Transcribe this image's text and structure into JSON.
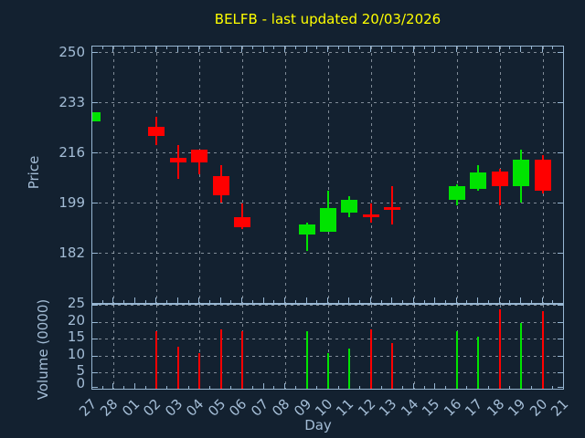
{
  "colors": {
    "background": "#132130",
    "axis": "#97b6d2",
    "text": "#a4bdd6",
    "title": "#ffff00",
    "up": "#00e400",
    "down": "#ff0000",
    "grid": "rgba(200,210,220,0.6)"
  },
  "chart_data": {
    "type": "candlestick",
    "title": "BELFB - last updated 20/03/2026",
    "xlabel": "Day",
    "x_labels": [
      "27",
      "28",
      "01",
      "02",
      "03",
      "04",
      "05",
      "06",
      "07",
      "08",
      "09",
      "10",
      "11",
      "12",
      "13",
      "16",
      "17",
      "18",
      "19",
      "20",
      "21"
    ],
    "x_labels_full": [
      "27",
      "28",
      "01",
      "02",
      "03",
      "04",
      "05",
      "06",
      "07",
      "08",
      "09",
      "10",
      "11",
      "12",
      "13",
      "14",
      "15",
      "16",
      "17",
      "18",
      "19",
      "20",
      "21"
    ],
    "grid_x_days": [
      "28",
      "02",
      "04",
      "06",
      "08",
      "10",
      "12",
      "14",
      "16",
      "18",
      "20"
    ],
    "legend": "none",
    "price_panel": {
      "ylabel": "Price",
      "yticks": [
        250,
        233,
        216,
        199,
        182
      ],
      "ylim": [
        164.8,
        252.3
      ],
      "candles": [
        {
          "day": "27",
          "open": 227,
          "high": 230,
          "low": 227,
          "close": 230
        },
        {
          "day": "02",
          "open": 225,
          "high": 228.5,
          "low": 219,
          "close": 222
        },
        {
          "day": "03",
          "open": 214.5,
          "high": 219,
          "low": 207.5,
          "close": 213
        },
        {
          "day": "04",
          "open": 217.5,
          "high": 217.5,
          "low": 209,
          "close": 213
        },
        {
          "day": "05",
          "open": 208.5,
          "high": 212,
          "low": 199.5,
          "close": 202
        },
        {
          "day": "06",
          "open": 194.5,
          "high": 199,
          "low": 190.5,
          "close": 191
        },
        {
          "day": "09",
          "open": 188.5,
          "high": 192.5,
          "low": 183,
          "close": 192
        },
        {
          "day": "10",
          "open": 189.5,
          "high": 203.5,
          "low": 189.5,
          "close": 197.5
        },
        {
          "day": "11",
          "open": 196,
          "high": 201.5,
          "low": 194.5,
          "close": 200.5
        },
        {
          "day": "12",
          "open": 195.5,
          "high": 199,
          "low": 192.5,
          "close": 194.5
        },
        {
          "day": "13",
          "open": 198,
          "high": 205,
          "low": 192,
          "close": 197
        },
        {
          "day": "16",
          "open": 200.5,
          "high": 205.5,
          "low": 198.5,
          "close": 205
        },
        {
          "day": "17",
          "open": 204,
          "high": 212,
          "low": 203.5,
          "close": 209.5
        },
        {
          "day": "18",
          "open": 210,
          "high": 211,
          "low": 198.5,
          "close": 205
        },
        {
          "day": "19",
          "open": 205,
          "high": 217.5,
          "low": 199.5,
          "close": 214
        },
        {
          "day": "20",
          "open": 214,
          "high": 215.5,
          "low": 202.5,
          "close": 203.5
        }
      ]
    },
    "volume_panel": {
      "ylabel": "Volume (0000)",
      "yticks": [
        25,
        20,
        15,
        10,
        5,
        0
      ],
      "ylim": [
        0,
        25.4
      ],
      "bars": [
        {
          "day": "02",
          "value": 17.5,
          "direction": "down"
        },
        {
          "day": "03",
          "value": 13,
          "direction": "down"
        },
        {
          "day": "04",
          "value": 11,
          "direction": "down"
        },
        {
          "day": "05",
          "value": 18,
          "direction": "down"
        },
        {
          "day": "06",
          "value": 17.5,
          "direction": "down"
        },
        {
          "day": "09",
          "value": 17.5,
          "direction": "up"
        },
        {
          "day": "10",
          "value": 11,
          "direction": "up"
        },
        {
          "day": "11",
          "value": 12.5,
          "direction": "up"
        },
        {
          "day": "12",
          "value": 18,
          "direction": "down"
        },
        {
          "day": "13",
          "value": 14,
          "direction": "down"
        },
        {
          "day": "16",
          "value": 17.5,
          "direction": "up"
        },
        {
          "day": "17",
          "value": 16,
          "direction": "up"
        },
        {
          "day": "18",
          "value": 24,
          "direction": "down"
        },
        {
          "day": "19",
          "value": 20,
          "direction": "up"
        },
        {
          "day": "20",
          "value": 23.5,
          "direction": "down"
        }
      ]
    }
  }
}
